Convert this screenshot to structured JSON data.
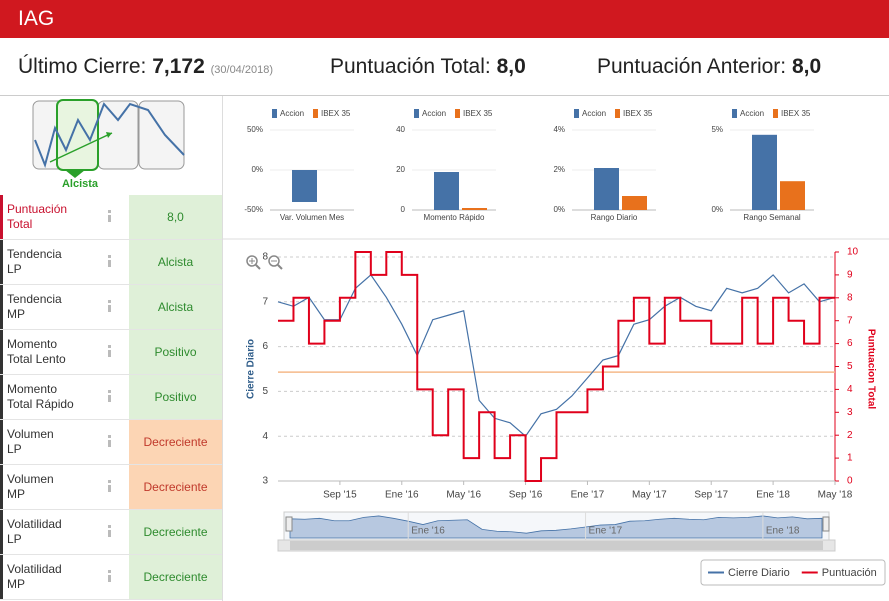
{
  "header": {
    "title": "IAG"
  },
  "summary": {
    "close_label": "Último Cierre:",
    "close_value": "7,172",
    "close_date": "(30/04/2018)",
    "score_label": "Puntuación Total:",
    "score_value": "8,0",
    "prev_label": "Puntuación Anterior:",
    "prev_value": "8,0"
  },
  "trend_icon": {
    "label": "Alcista"
  },
  "table": {
    "rows": [
      {
        "label": "Puntuación\nTotal",
        "value": "8,0",
        "color": "#dff0d8",
        "text_color": "#2e8b2e",
        "border": "#c8102e"
      },
      {
        "label": "Tendencia\nLP",
        "value": "Alcista",
        "color": "#dff0d8",
        "text_color": "#2e8b2e",
        "border": "#333333"
      },
      {
        "label": "Tendencia\nMP",
        "value": "Alcista",
        "color": "#dff0d8",
        "text_color": "#2e8b2e",
        "border": "#333333"
      },
      {
        "label": "Momento\nTotal Lento",
        "value": "Positivo",
        "color": "#dff0d8",
        "text_color": "#2e8b2e",
        "border": "#333333"
      },
      {
        "label": "Momento\nTotal Rápido",
        "value": "Positivo",
        "color": "#dff0d8",
        "text_color": "#2e8b2e",
        "border": "#333333"
      },
      {
        "label": "Volumen\nLP",
        "value": "Decreciente",
        "color": "#fcd5b4",
        "text_color": "#c0392b",
        "border": "#333333"
      },
      {
        "label": "Volumen\nMP",
        "value": "Decreciente",
        "color": "#fcd5b4",
        "text_color": "#c0392b",
        "border": "#333333"
      },
      {
        "label": "Volatilidad\nLP",
        "value": "Decreciente",
        "color": "#dff0d8",
        "text_color": "#2e8b2e",
        "border": "#333333"
      },
      {
        "label": "Volatilidad\nMP",
        "value": "Decreciente",
        "color": "#dff0d8",
        "text_color": "#2e8b2e",
        "border": "#333333"
      }
    ]
  },
  "chart_data": [
    {
      "type": "bar",
      "categories": [
        "Var. Volumen Mes"
      ],
      "series": [
        {
          "name": "Accion",
          "color": "#4572a7",
          "values": [
            -40
          ]
        },
        {
          "name": "IBEX 35",
          "color": "#e8711c",
          "values": [
            0
          ]
        }
      ],
      "ylim": [
        -50,
        50
      ],
      "yticks": [
        {
          "value": -50,
          "label": "-50%"
        },
        {
          "value": 0,
          "label": "0%"
        },
        {
          "value": 50,
          "label": "50%"
        }
      ]
    },
    {
      "type": "bar",
      "categories": [
        "Momento Rápido"
      ],
      "series": [
        {
          "name": "Accion",
          "color": "#4572a7",
          "values": [
            19
          ]
        },
        {
          "name": "IBEX 35",
          "color": "#e8711c",
          "values": [
            1
          ]
        }
      ],
      "ylim": [
        0,
        40
      ],
      "yticks": [
        0,
        20,
        40
      ]
    },
    {
      "type": "bar",
      "categories": [
        "Rango Diario"
      ],
      "series": [
        {
          "name": "Accion",
          "color": "#4572a7",
          "values": [
            2.1
          ]
        },
        {
          "name": "IBEX 35",
          "color": "#e8711c",
          "values": [
            0.7
          ]
        }
      ],
      "ylim": [
        0,
        4
      ],
      "yticks": [
        {
          "value": 0,
          "label": "0%"
        },
        {
          "value": 2,
          "label": "2%"
        },
        {
          "value": 4,
          "label": "4%"
        }
      ]
    },
    {
      "type": "bar",
      "categories": [
        "Rango Semanal"
      ],
      "series": [
        {
          "name": "Accion",
          "color": "#4572a7",
          "values": [
            4.7
          ]
        },
        {
          "name": "IBEX 35",
          "color": "#e8711c",
          "values": [
            1.8
          ]
        }
      ],
      "ylim": [
        0,
        5
      ],
      "yticks": [
        {
          "value": 0,
          "label": "0%"
        },
        {
          "value": 5,
          "label": "5%"
        }
      ]
    },
    {
      "type": "line",
      "x": [
        "2015-05",
        "2015-06",
        "2015-07",
        "2015-08",
        "2015-09",
        "2015-10",
        "2015-11",
        "2015-12",
        "2016-01",
        "2016-02",
        "2016-03",
        "2016-04",
        "2016-05",
        "2016-06",
        "2016-07",
        "2016-08",
        "2016-09",
        "2016-10",
        "2016-11",
        "2016-12",
        "2017-01",
        "2017-02",
        "2017-03",
        "2017-04",
        "2017-05",
        "2017-06",
        "2017-07",
        "2017-08",
        "2017-09",
        "2017-10",
        "2017-11",
        "2017-12",
        "2018-01",
        "2018-02",
        "2018-03",
        "2018-04",
        "2018-05"
      ],
      "series": [
        {
          "name": "Cierre Diario",
          "color": "#4572a7",
          "values": [
            7.0,
            6.9,
            7.1,
            6.6,
            6.6,
            7.3,
            7.6,
            7.1,
            6.5,
            5.8,
            6.6,
            6.7,
            6.8,
            4.8,
            4.4,
            4.3,
            4.0,
            4.5,
            4.6,
            4.9,
            5.3,
            5.7,
            5.8,
            6.5,
            6.6,
            6.9,
            7.1,
            6.9,
            6.8,
            7.3,
            7.2,
            7.3,
            7.6,
            7.2,
            7.4,
            7.0,
            7.1
          ]
        },
        {
          "name": "Puntuación",
          "color": "#e0001b",
          "axis": "y2",
          "step": true,
          "values": [
            7,
            8,
            6,
            7,
            8,
            10,
            9,
            10,
            9,
            4,
            2,
            4,
            1,
            3,
            1,
            2,
            0,
            1,
            3,
            3,
            4,
            5,
            7,
            8,
            6,
            8,
            7,
            7,
            6,
            6,
            8,
            6,
            8,
            7,
            6,
            8,
            8
          ]
        }
      ],
      "ylabel": "Cierre Diario",
      "y2label": "Puntuacion Total",
      "xlim": [
        "2015-05",
        "2018-05"
      ],
      "xticks": [
        {
          "value": "2015-09",
          "label": "Sep '15"
        },
        {
          "value": "2016-01",
          "label": "Ene '16"
        },
        {
          "value": "2016-05",
          "label": "May '16"
        },
        {
          "value": "2016-09",
          "label": "Sep '16"
        },
        {
          "value": "2017-01",
          "label": "Ene '17"
        },
        {
          "value": "2017-05",
          "label": "May '17"
        },
        {
          "value": "2017-09",
          "label": "Sep '17"
        },
        {
          "value": "2018-01",
          "label": "Ene '18"
        },
        {
          "value": "2018-05",
          "label": "May '18"
        }
      ],
      "ylim": [
        3,
        8
      ],
      "yticks": [
        3,
        4,
        5,
        6,
        7,
        8
      ],
      "y2lim": [
        0,
        10
      ],
      "y2ticks": [
        0,
        1,
        2,
        3,
        4,
        5,
        6,
        7,
        8,
        9,
        10
      ],
      "hline": {
        "value": 5.43,
        "color": "#f5b98a"
      },
      "grid": true,
      "legend": "bottom-right",
      "navigator_ticks": [
        {
          "value": "2016-01",
          "label": "Ene '16"
        },
        {
          "value": "2017-01",
          "label": "Ene '17"
        },
        {
          "value": "2018-01",
          "label": "Ene '18"
        }
      ]
    }
  ]
}
